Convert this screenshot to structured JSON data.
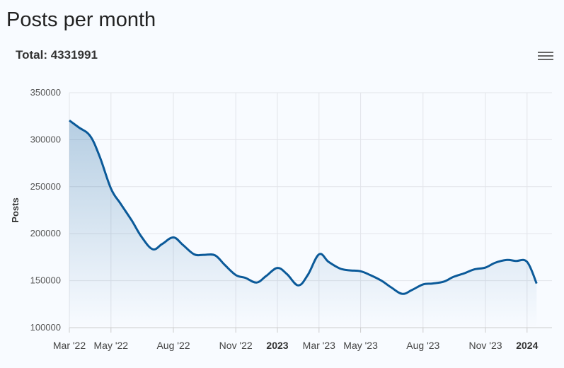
{
  "page": {
    "title": "Posts per month"
  },
  "chart_data": {
    "type": "area",
    "title": "",
    "subtitle": "Total: 4331991",
    "xlabel": "",
    "ylabel": "Posts",
    "ylim": [
      100000,
      350000
    ],
    "y_ticks": [
      "100000",
      "150000",
      "200000",
      "250000",
      "300000",
      "350000"
    ],
    "x_ticks": [
      {
        "label": "Mar '22",
        "month": 0,
        "bold": false
      },
      {
        "label": "May '22",
        "month": 2,
        "bold": false
      },
      {
        "label": "Aug '22",
        "month": 5,
        "bold": false
      },
      {
        "label": "Nov '22",
        "month": 8,
        "bold": false
      },
      {
        "label": "2023",
        "month": 10,
        "bold": true
      },
      {
        "label": "Mar '23",
        "month": 12,
        "bold": false
      },
      {
        "label": "May '23",
        "month": 14,
        "bold": false
      },
      {
        "label": "Aug '23",
        "month": 17,
        "bold": false
      },
      {
        "label": "Nov '23",
        "month": 20,
        "bold": false
      },
      {
        "label": "2024",
        "month": 22,
        "bold": true
      }
    ],
    "grid": true,
    "legend": false,
    "series": [
      {
        "color": "#0b5a99",
        "x": [
          "2022-03-01",
          "2022-03-15",
          "2022-04-01",
          "2022-04-15",
          "2022-05-01",
          "2022-05-15",
          "2022-06-01",
          "2022-06-15",
          "2022-07-01",
          "2022-07-15",
          "2022-08-01",
          "2022-08-15",
          "2022-09-01",
          "2022-09-15",
          "2022-10-01",
          "2022-10-15",
          "2022-11-01",
          "2022-11-15",
          "2022-12-01",
          "2022-12-15",
          "2023-01-01",
          "2023-01-15",
          "2023-02-01",
          "2023-02-15",
          "2023-03-01",
          "2023-03-15",
          "2023-04-01",
          "2023-04-15",
          "2023-05-01",
          "2023-05-15",
          "2023-06-01",
          "2023-06-15",
          "2023-07-01",
          "2023-07-15",
          "2023-08-01",
          "2023-08-15",
          "2023-09-01",
          "2023-09-15",
          "2023-10-01",
          "2023-10-15",
          "2023-11-01",
          "2023-11-15",
          "2023-12-01",
          "2023-12-15",
          "2024-01-01",
          "2024-01-15"
        ],
        "values": [
          320500,
          313000,
          304000,
          282000,
          248000,
          232000,
          214000,
          197000,
          183500,
          189000,
          196000,
          188000,
          178000,
          177500,
          177000,
          167000,
          156000,
          153000,
          148000,
          155000,
          163500,
          157000,
          145000,
          156000,
          178000,
          170000,
          163000,
          161000,
          160000,
          156000,
          150000,
          143000,
          136000,
          140000,
          146000,
          147000,
          149000,
          154000,
          158000,
          162000,
          164000,
          169000,
          172000,
          171000,
          170000,
          147000
        ]
      }
    ]
  }
}
